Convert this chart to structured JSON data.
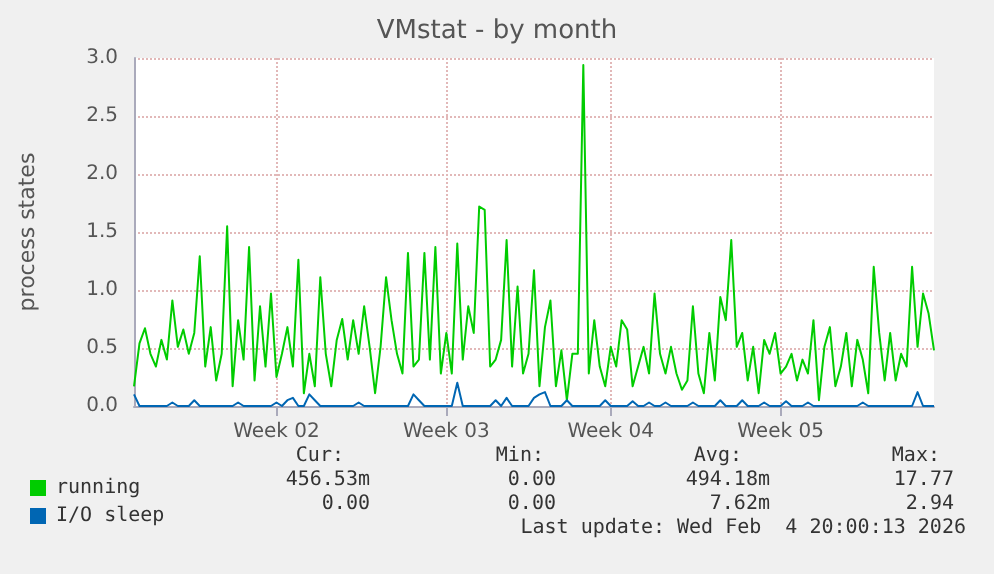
{
  "chart_data": {
    "type": "line",
    "title": "VMstat - by month",
    "ylabel": "process states",
    "categories": [
      null,
      null,
      null,
      null,
      null,
      null,
      null,
      null,
      null,
      null,
      null,
      null,
      null,
      null,
      null,
      null,
      null,
      null,
      null,
      null,
      null,
      null,
      null,
      null,
      null,
      null,
      "Week 02",
      null,
      null,
      null,
      null,
      null,
      null,
      null,
      null,
      null,
      null,
      null,
      null,
      null,
      null,
      null,
      null,
      null,
      null,
      null,
      null,
      null,
      null,
      null,
      null,
      null,
      null,
      null,
      null,
      null,
      null,
      "Week 03",
      null,
      null,
      null,
      null,
      null,
      null,
      null,
      null,
      null,
      null,
      null,
      null,
      null,
      null,
      null,
      null,
      null,
      null,
      null,
      null,
      null,
      null,
      null,
      null,
      null,
      null,
      null,
      null,
      null,
      "Week 04",
      null,
      null,
      null,
      null,
      null,
      null,
      null,
      null,
      null,
      null,
      null,
      null,
      null,
      null,
      null,
      null,
      null,
      null,
      null,
      null,
      null,
      null,
      null,
      null,
      null,
      null,
      null,
      null,
      null,
      null,
      "Week 05",
      null,
      null,
      null,
      null,
      null,
      null,
      null,
      null,
      null,
      null,
      null,
      null,
      null,
      null,
      null,
      null,
      null,
      null,
      null,
      null,
      null,
      null,
      null,
      null,
      null,
      null,
      null,
      null
    ],
    "ylim": [
      0,
      3
    ],
    "yticks": [
      {
        "value": 0,
        "label": "0.0"
      },
      {
        "value": 0.5,
        "label": "0.5"
      },
      {
        "value": 1,
        "label": "1.0"
      },
      {
        "value": 1.5,
        "label": "1.5"
      },
      {
        "value": 2,
        "label": "2.0"
      },
      {
        "value": 2.5,
        "label": "2.5"
      },
      {
        "value": 3,
        "label": "3.0"
      }
    ],
    "grid": true,
    "legend": "bottom left",
    "marker": "none",
    "line_style": "solid",
    "series": [
      {
        "name": "running",
        "color": "#00cc00",
        "values": [
          0.17,
          0.54,
          0.67,
          0.45,
          0.34,
          0.57,
          0.4,
          0.91,
          0.51,
          0.66,
          0.45,
          0.63,
          1.29,
          0.34,
          0.68,
          0.22,
          0.45,
          1.55,
          0.17,
          0.74,
          0.4,
          1.37,
          0.22,
          0.86,
          0.34,
          0.97,
          0.25,
          0.45,
          0.68,
          0.34,
          1.26,
          0.11,
          0.45,
          0.17,
          1.11,
          0.45,
          0.17,
          0.57,
          0.75,
          0.4,
          0.74,
          0.45,
          0.86,
          0.51,
          0.11,
          0.51,
          1.11,
          0.74,
          0.45,
          0.28,
          1.32,
          0.34,
          0.4,
          1.32,
          0.4,
          1.37,
          0.28,
          0.63,
          0.28,
          1.4,
          0.4,
          0.86,
          0.63,
          1.72,
          1.69,
          0.34,
          0.4,
          0.57,
          1.43,
          0.34,
          1.03,
          0.28,
          0.45,
          1.17,
          0.17,
          0.68,
          0.91,
          0.17,
          0.48,
          0.05,
          0.45,
          0.45,
          2.94,
          0.28,
          0.74,
          0.34,
          0.17,
          0.51,
          0.34,
          0.74,
          0.66,
          0.17,
          0.34,
          0.51,
          0.28,
          0.97,
          0.45,
          0.28,
          0.51,
          0.28,
          0.14,
          0.22,
          0.86,
          0.28,
          0.11,
          0.63,
          0.22,
          0.94,
          0.74,
          1.43,
          0.51,
          0.63,
          0.22,
          0.51,
          0.11,
          0.57,
          0.45,
          0.63,
          0.28,
          0.34,
          0.45,
          0.22,
          0.4,
          0.28,
          0.74,
          0.05,
          0.51,
          0.68,
          0.17,
          0.34,
          0.63,
          0.17,
          0.57,
          0.4,
          0.11,
          1.2,
          0.63,
          0.22,
          0.63,
          0.22,
          0.45,
          0.34,
          1.2,
          0.51,
          0.97,
          0.8,
          0.48
        ]
      },
      {
        "name": "I/O sleep",
        "color": "#0066b3",
        "values": [
          0.1,
          0,
          0,
          0,
          0,
          0,
          0,
          0.03,
          0,
          0,
          0,
          0.05,
          0,
          0,
          0,
          0,
          0,
          0,
          0,
          0.03,
          0,
          0,
          0,
          0,
          0,
          0,
          0.03,
          0,
          0.05,
          0.07,
          0,
          0,
          0.1,
          0.05,
          0,
          0,
          0,
          0,
          0,
          0,
          0,
          0.03,
          0,
          0,
          0,
          0,
          0,
          0,
          0,
          0,
          0,
          0.1,
          0.05,
          0,
          0,
          0,
          0,
          0,
          0,
          0.2,
          0,
          0,
          0,
          0,
          0,
          0,
          0.05,
          0,
          0.07,
          0,
          0,
          0,
          0,
          0.07,
          0.1,
          0.12,
          0,
          0,
          0,
          0.05,
          0,
          0,
          0,
          0,
          0,
          0,
          0.05,
          0,
          0,
          0,
          0,
          0.04,
          0,
          0,
          0.03,
          0,
          0,
          0.03,
          0,
          0,
          0,
          0,
          0.03,
          0,
          0,
          0,
          0,
          0.05,
          0,
          0,
          0,
          0.05,
          0,
          0,
          0,
          0.03,
          0,
          0,
          0,
          0.04,
          0,
          0,
          0,
          0.03,
          0,
          0,
          0,
          0,
          0,
          0,
          0,
          0,
          0,
          0.03,
          0,
          0,
          0,
          0,
          0,
          0,
          0,
          0,
          0,
          0.12,
          0,
          0,
          0
        ]
      }
    ],
    "annotations": [
      "Cur:",
      "Min:",
      "Avg:",
      "Max:",
      "456.53m",
      "0.00",
      "494.18m",
      "17.77",
      "0.00",
      "0.00",
      "7.62m",
      "2.94",
      "Last update: Wed Feb  4 20:00:13 2026"
    ]
  }
}
